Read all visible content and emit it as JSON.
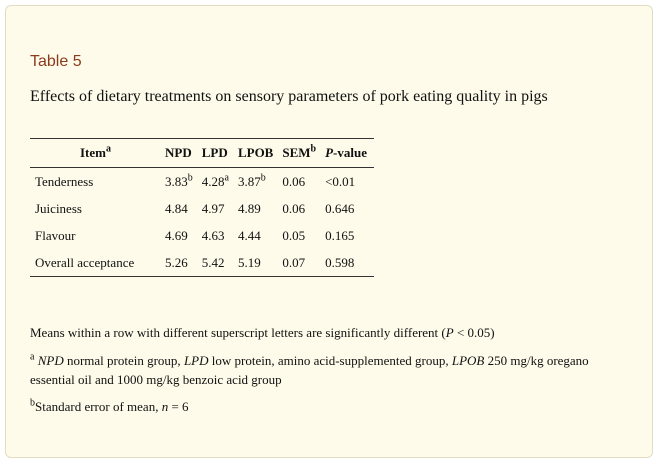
{
  "table_label": "Table 5",
  "caption": "Effects of dietary treatments on sensory parameters of pork eating quality in pigs",
  "headers": {
    "item": "Item",
    "item_sup": "a",
    "npd": "NPD",
    "lpd": "LPD",
    "lpob": "LPOB",
    "sem": "SEM",
    "sem_sup": "b",
    "p_italic": "P",
    "p_rest": "-value"
  },
  "rows": [
    {
      "item": "Tenderness",
      "npd": "3.83",
      "npd_sup": "b",
      "lpd": "4.28",
      "lpd_sup": "a",
      "lpob": "3.87",
      "lpob_sup": "b",
      "sem": "0.06",
      "p": "<0.01"
    },
    {
      "item": "Juiciness",
      "npd": "4.84",
      "lpd": "4.97",
      "lpob": "4.89",
      "sem": "0.06",
      "p": "0.646"
    },
    {
      "item": "Flavour",
      "npd": "4.69",
      "lpd": "4.63",
      "lpob": "4.44",
      "sem": "0.05",
      "p": "0.165"
    },
    {
      "item": "Overall acceptance",
      "npd": "5.26",
      "lpd": "5.42",
      "lpob": "5.19",
      "sem": "0.07",
      "p": "0.598"
    }
  ],
  "notes": {
    "n1_text": "Means within a row with different superscript letters are significantly different (",
    "n1_p": "P",
    "n1_end": " < 0.05)",
    "n2_sup": "a",
    "n2_npd": "NPD",
    "n2_t1": " normal protein group, ",
    "n2_lpd": "LPD",
    "n2_t2": " low protein, amino acid-supplemented group, ",
    "n2_lpob": "LPOB",
    "n2_t3": " 250 mg/kg oregano essential oil and 1000 mg/kg benzoic acid group",
    "n3_sup": "b",
    "n3_text": "Standard error of mean, ",
    "n3_n": "n",
    "n3_end": " = 6"
  }
}
